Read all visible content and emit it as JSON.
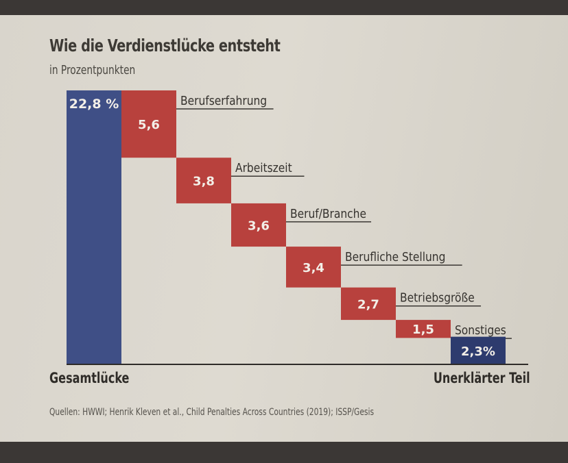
{
  "chart_data": {
    "type": "waterfall",
    "title": "Wie die Verdienstlücke entsteht",
    "subtitle": "in Prozentpunkten",
    "total": {
      "label": "Gesamtlücke",
      "value": 22.8,
      "value_label": "22,8 %"
    },
    "components": [
      {
        "label": "Berufserfahrung",
        "value": 5.6,
        "value_label": "5,6"
      },
      {
        "label": "Arbeitszeit",
        "value": 3.8,
        "value_label": "3,8"
      },
      {
        "label": "Beruf/Branche",
        "value": 3.6,
        "value_label": "3,6"
      },
      {
        "label": "Berufliche Stellung",
        "value": 3.4,
        "value_label": "3,4"
      },
      {
        "label": "Betriebsgröße",
        "value": 2.7,
        "value_label": "2,7"
      },
      {
        "label": "Sonstiges",
        "value": 1.5,
        "value_label": "1,5"
      }
    ],
    "residual": {
      "label": "Unerklärter Teil",
      "value": 2.3,
      "value_label": "2,3%"
    },
    "colors": {
      "total": "#3f4f86",
      "component": "#b8413d",
      "residual": "#2d3b6e"
    },
    "source": "Quellen: HWWI; Henrik Kleven et al., Child Penalties Across Countries (2019); ISSP/Gesis"
  }
}
